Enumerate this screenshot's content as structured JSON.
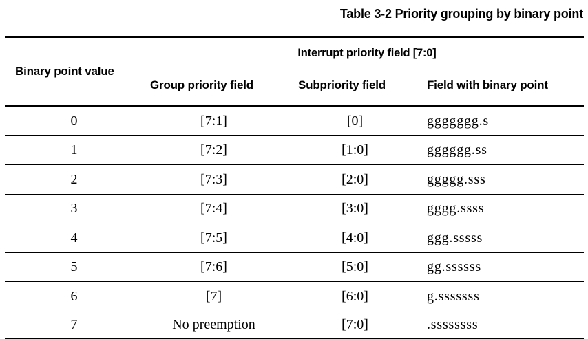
{
  "caption": "Table 3-2 Priority grouping by binary point",
  "table": {
    "span_header": "Interrupt priority field [7:0]",
    "col1_header": "Binary point value",
    "sub_headers": {
      "group": "Group priority field",
      "sub": "Subpriority field",
      "field": "Field with binary point"
    },
    "rows": [
      {
        "binary_point": "0",
        "group": "[7:1]",
        "sub": "[0]",
        "field": "ggggggg.s"
      },
      {
        "binary_point": "1",
        "group": "[7:2]",
        "sub": "[1:0]",
        "field": "gggggg.ss"
      },
      {
        "binary_point": "2",
        "group": "[7:3]",
        "sub": "[2:0]",
        "field": "ggggg.sss"
      },
      {
        "binary_point": "3",
        "group": "[7:4]",
        "sub": "[3:0]",
        "field": "gggg.ssss"
      },
      {
        "binary_point": "4",
        "group": "[7:5]",
        "sub": "[4:0]",
        "field": "ggg.sssss"
      },
      {
        "binary_point": "5",
        "group": "[7:6]",
        "sub": "[5:0]",
        "field": "gg.ssssss"
      },
      {
        "binary_point": "6",
        "group": "[7]",
        "sub": "[6:0]",
        "field": "g.sssssss"
      },
      {
        "binary_point": "7",
        "group": "No preemption",
        "sub": "[7:0]",
        "field": ".ssssssss"
      }
    ]
  },
  "colors": {
    "text": "#000000",
    "background": "#ffffff",
    "rule": "#000000"
  }
}
